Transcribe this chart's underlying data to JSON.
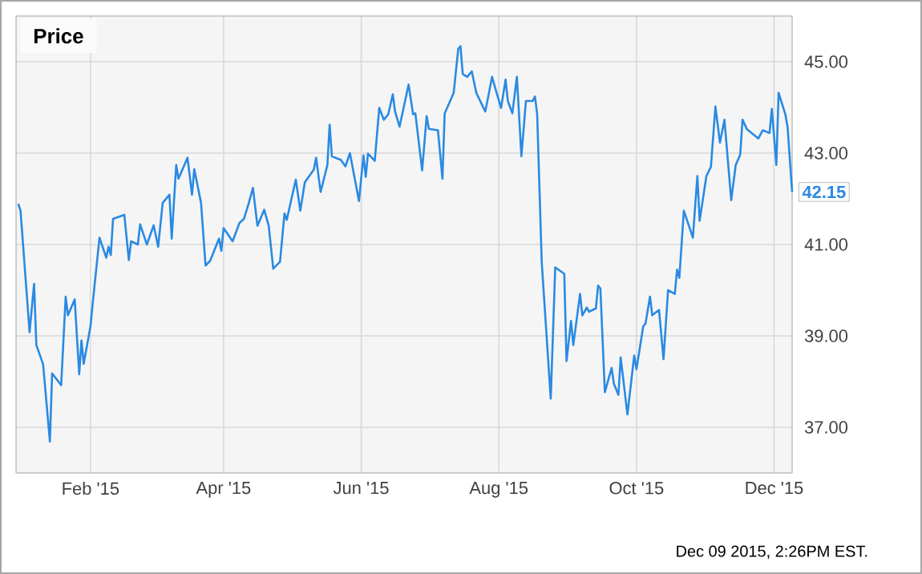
{
  "chart_data": {
    "type": "line",
    "title": "Price",
    "x": [
      "2014-12-31",
      "2015-01-01",
      "2015-01-05",
      "2015-01-07",
      "2015-01-08",
      "2015-01-11",
      "2015-01-14",
      "2015-01-15",
      "2015-01-19",
      "2015-01-21",
      "2015-01-22",
      "2015-01-25",
      "2015-01-27",
      "2015-01-28",
      "2015-01-29",
      "2015-02-01",
      "2015-02-02",
      "2015-02-05",
      "2015-02-08",
      "2015-02-09",
      "2015-02-10",
      "2015-02-11",
      "2015-02-16",
      "2015-02-18",
      "2015-02-19",
      "2015-02-22",
      "2015-02-23",
      "2015-02-26",
      "2015-03-01",
      "2015-03-03",
      "2015-03-05",
      "2015-03-08",
      "2015-03-09",
      "2015-03-11",
      "2015-03-12",
      "2015-03-16",
      "2015-03-18",
      "2015-03-19",
      "2015-03-22",
      "2015-03-24",
      "2015-03-26",
      "2015-03-30",
      "2015-03-31",
      "2015-04-01",
      "2015-04-05",
      "2015-04-08",
      "2015-04-10",
      "2015-04-12",
      "2015-04-14",
      "2015-04-16",
      "2015-04-19",
      "2015-04-21",
      "2015-04-23",
      "2015-04-26",
      "2015-04-28",
      "2015-04-29",
      "2015-05-03",
      "2015-05-05",
      "2015-05-07",
      "2015-05-11",
      "2015-05-12",
      "2015-05-14",
      "2015-05-17",
      "2015-05-18",
      "2015-05-19",
      "2015-05-23",
      "2015-05-25",
      "2015-05-27",
      "2015-05-31",
      "2015-06-02",
      "2015-06-03",
      "2015-06-04",
      "2015-06-07",
      "2015-06-09",
      "2015-06-11",
      "2015-06-13",
      "2015-06-15",
      "2015-06-16",
      "2015-06-18",
      "2015-06-22",
      "2015-06-24",
      "2015-06-25",
      "2015-06-28",
      "2015-06-30",
      "2015-07-01",
      "2015-07-05",
      "2015-07-07",
      "2015-07-08",
      "2015-07-12",
      "2015-07-14",
      "2015-07-15",
      "2015-07-16",
      "2015-07-18",
      "2015-07-20",
      "2015-07-22",
      "2015-07-26",
      "2015-07-29",
      "2015-07-31",
      "2015-08-02",
      "2015-08-04",
      "2015-08-05",
      "2015-08-07",
      "2015-08-09",
      "2015-08-11",
      "2015-08-13",
      "2015-08-16",
      "2015-08-17",
      "2015-08-18",
      "2015-08-20",
      "2015-08-24",
      "2015-08-26",
      "2015-08-30",
      "2015-08-31",
      "2015-09-02",
      "2015-09-03",
      "2015-09-06",
      "2015-09-07",
      "2015-09-09",
      "2015-09-10",
      "2015-09-13",
      "2015-09-14",
      "2015-09-15",
      "2015-09-17",
      "2015-09-20",
      "2015-09-21",
      "2015-09-23",
      "2015-09-24",
      "2015-09-27",
      "2015-09-30",
      "2015-10-01",
      "2015-10-04",
      "2015-10-05",
      "2015-10-07",
      "2015-10-08",
      "2015-10-11",
      "2015-10-13",
      "2015-10-15",
      "2015-10-18",
      "2015-10-19",
      "2015-10-20",
      "2015-10-22",
      "2015-10-26",
      "2015-10-28",
      "2015-10-29",
      "2015-11-01",
      "2015-11-03",
      "2015-11-05",
      "2015-11-07",
      "2015-11-09",
      "2015-11-12",
      "2015-11-14",
      "2015-11-16",
      "2015-11-17",
      "2015-11-19",
      "2015-11-24",
      "2015-11-26",
      "2015-11-29",
      "2015-11-30",
      "2015-12-02",
      "2015-12-03",
      "2015-12-06",
      "2015-12-07",
      "2015-12-09"
    ],
    "series": [
      {
        "color": "#2a8ae2",
        "values": [
          41.89,
          41.74,
          39.08,
          40.14,
          38.8,
          38.38,
          36.69,
          38.18,
          37.92,
          39.86,
          39.45,
          39.8,
          38.16,
          38.9,
          38.39,
          39.21,
          39.72,
          41.15,
          40.71,
          40.95,
          40.77,
          41.56,
          41.65,
          40.66,
          41.07,
          41.0,
          41.44,
          41.0,
          41.42,
          40.95,
          41.91,
          42.09,
          41.13,
          42.74,
          42.44,
          42.9,
          42.09,
          42.65,
          41.91,
          40.54,
          40.64,
          41.13,
          40.86,
          41.36,
          41.07,
          41.47,
          41.56,
          41.88,
          42.24,
          41.41,
          41.76,
          41.41,
          40.47,
          40.62,
          41.68,
          41.54,
          42.42,
          41.74,
          42.36,
          42.64,
          42.9,
          42.15,
          42.74,
          43.62,
          42.93,
          42.85,
          42.71,
          43.0,
          41.95,
          42.95,
          42.48,
          42.99,
          42.83,
          43.99,
          43.73,
          43.85,
          44.29,
          43.91,
          43.58,
          44.5,
          43.85,
          43.87,
          42.62,
          43.81,
          43.53,
          43.5,
          42.44,
          43.87,
          44.32,
          45.28,
          45.34,
          44.73,
          44.67,
          44.79,
          44.32,
          43.91,
          44.67,
          44.32,
          43.99,
          44.61,
          44.14,
          43.87,
          44.67,
          42.93,
          44.14,
          44.14,
          44.24,
          43.85,
          40.62,
          37.63,
          40.5,
          40.36,
          38.45,
          39.33,
          38.8,
          39.92,
          39.45,
          39.62,
          39.53,
          39.6,
          40.1,
          40.04,
          37.77,
          38.3,
          37.95,
          37.71,
          38.53,
          37.28,
          38.57,
          38.27,
          39.21,
          39.27,
          39.86,
          39.45,
          39.57,
          38.49,
          40.0,
          39.92,
          40.45,
          40.27,
          41.74,
          41.15,
          42.5,
          41.52,
          42.5,
          42.7,
          44.02,
          43.23,
          43.73,
          41.97,
          42.74,
          42.97,
          43.73,
          43.52,
          43.32,
          43.5,
          43.44,
          43.97,
          42.74,
          44.32,
          43.85,
          43.56,
          42.15
        ]
      }
    ],
    "xlim": [
      "2014-12-30",
      "2015-12-09"
    ],
    "xticks": [
      {
        "value": "2015-02-01",
        "label": "Feb '15"
      },
      {
        "value": "2015-04-01",
        "label": "Apr '15"
      },
      {
        "value": "2015-06-01",
        "label": "Jun '15"
      },
      {
        "value": "2015-08-01",
        "label": "Aug '15"
      },
      {
        "value": "2015-10-01",
        "label": "Oct '15"
      },
      {
        "value": "2015-12-01",
        "label": "Dec '15"
      }
    ],
    "ylim": [
      36,
      46
    ],
    "yticks": [
      {
        "value": 37,
        "label": "37.00"
      },
      {
        "value": 39,
        "label": "39.00"
      },
      {
        "value": 41,
        "label": "41.00"
      },
      {
        "value": 43,
        "label": "43.00"
      },
      {
        "value": 45,
        "label": "45.00"
      }
    ],
    "grid": true,
    "annotations": [
      {
        "text": "42.15",
        "x": "2015-12-09",
        "y": 42.15
      },
      "Dec 09 2015, 2:26PM EST."
    ]
  }
}
